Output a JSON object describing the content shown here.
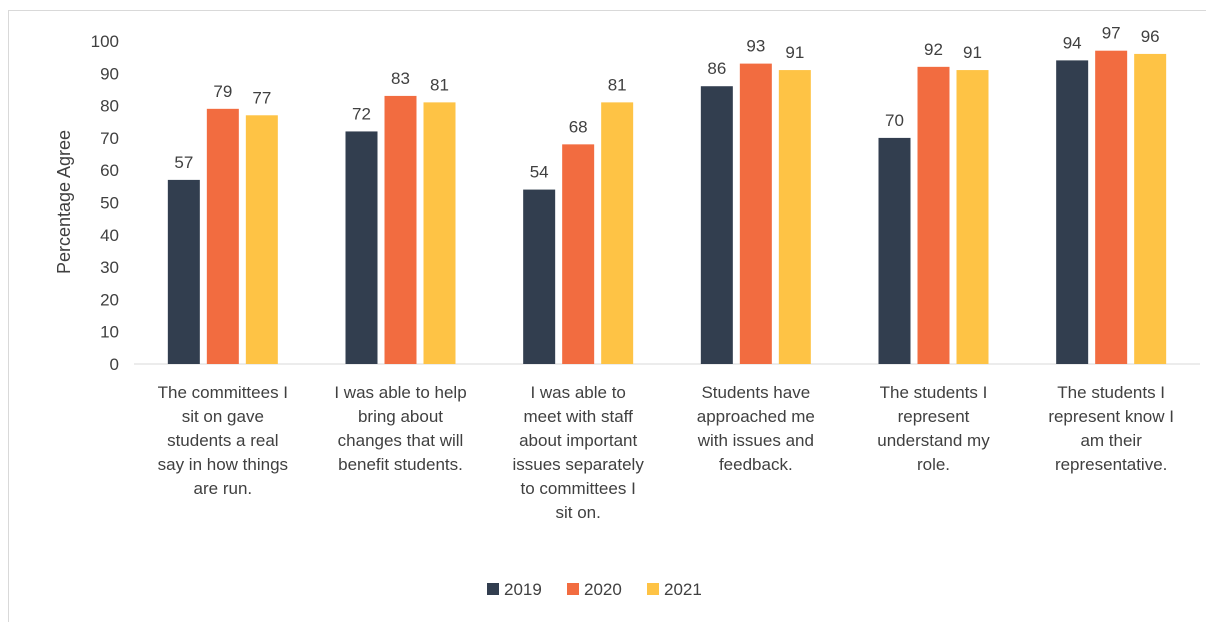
{
  "chart_data": {
    "type": "bar",
    "title": "",
    "xlabel": "",
    "ylabel": "Percentage Agree",
    "ylim": [
      0,
      100
    ],
    "yticks": [
      0,
      10,
      20,
      30,
      40,
      50,
      60,
      70,
      80,
      90,
      100
    ],
    "grid": false,
    "legend_position": "bottom",
    "categories": [
      [
        "The committees I",
        "sit on gave",
        "students a real",
        "say in how things",
        "are run."
      ],
      [
        "I was able to help",
        "bring about",
        "changes that will",
        "benefit students."
      ],
      [
        "I was able to",
        "meet with staff",
        "about important",
        "issues separately",
        "to committees I",
        "sit on."
      ],
      [
        "Students have",
        "approached me",
        "with issues and",
        "feedback."
      ],
      [
        "The students I",
        "represent",
        "understand my",
        "role."
      ],
      [
        "The students I",
        "represent know I",
        "am their",
        "representative."
      ]
    ],
    "series": [
      {
        "name": "2019",
        "color": "#323e4f",
        "values": [
          57,
          72,
          54,
          86,
          70,
          94
        ]
      },
      {
        "name": "2020",
        "color": "#f26c40",
        "values": [
          79,
          83,
          68,
          93,
          92,
          97
        ]
      },
      {
        "name": "2021",
        "color": "#fec345",
        "values": [
          77,
          81,
          81,
          91,
          91,
          96
        ]
      }
    ]
  }
}
